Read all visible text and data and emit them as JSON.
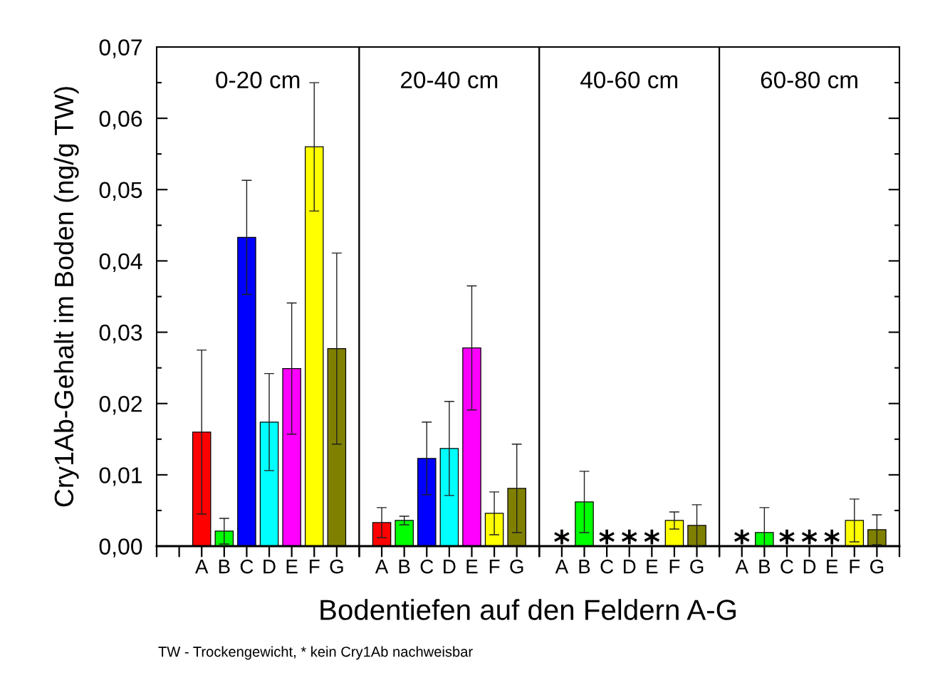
{
  "chart_data": [
    {
      "type": "bar",
      "title": "0-20 cm",
      "xlabel": "Bodentiefen auf den Feldern A-G",
      "ylabel": "Cry1Ab-Gehalt im Boden (ng/g TW)",
      "categories": [
        "A",
        "B",
        "C",
        "D",
        "E",
        "F",
        "G"
      ],
      "values": [
        0.016,
        0.0021,
        0.0433,
        0.0174,
        0.0249,
        0.056,
        0.0277
      ],
      "errors": [
        0.0115,
        0.0018,
        0.008,
        0.0068,
        0.0092,
        0.009,
        0.0134
      ],
      "colors": [
        "#ff0000",
        "#00ff00",
        "#0000ff",
        "#00ffff",
        "#ff00ff",
        "#ffff00",
        "#808000"
      ],
      "ylim": [
        0,
        0.07
      ],
      "yticks": [
        {
          "value": 0,
          "label": "0,00"
        },
        {
          "value": 0.01,
          "label": "0,01"
        },
        {
          "value": 0.02,
          "label": "0,02"
        },
        {
          "value": 0.03,
          "label": "0,03"
        },
        {
          "value": 0.04,
          "label": "0,04"
        },
        {
          "value": 0.05,
          "label": "0,05"
        },
        {
          "value": 0.06,
          "label": "0,06"
        },
        {
          "value": 0.07,
          "label": "0,07"
        }
      ],
      "annotations": [
        "TW - Trockengewicht, * kein Cry1Ab nachweisbar"
      ]
    },
    {
      "type": "bar",
      "title": "20-40 cm",
      "categories": [
        "A",
        "B",
        "C",
        "D",
        "E",
        "F",
        "G"
      ],
      "values": [
        0.0033,
        0.0036,
        0.0123,
        0.0137,
        0.0278,
        0.0046,
        0.0081
      ],
      "errors": [
        0.0021,
        0.0006,
        0.0051,
        0.0066,
        0.0087,
        0.003,
        0.0062
      ],
      "colors": [
        "#ff0000",
        "#00ff00",
        "#0000ff",
        "#00ffff",
        "#ff00ff",
        "#ffff00",
        "#808000"
      ],
      "ylim": [
        0,
        0.07
      ],
      "tick_labels": "x"
    },
    {
      "type": "bar",
      "title": "40-60 cm",
      "categories": [
        "A",
        "B",
        "C",
        "D",
        "E",
        "F",
        "G"
      ],
      "values": [
        null,
        0.0062,
        null,
        null,
        null,
        0.0036,
        0.0029
      ],
      "errors": [
        null,
        0.0043,
        null,
        null,
        null,
        0.0012,
        0.0029
      ],
      "colors": [
        null,
        "#00ff00",
        null,
        null,
        null,
        "#ffff00",
        "#808000"
      ],
      "ylim": [
        0,
        0.07
      ],
      "tick_labels": "x",
      "annotations": [
        "*",
        "*",
        "*",
        "*"
      ]
    },
    {
      "type": "bar",
      "title": "60-80 cm",
      "categories": [
        "A",
        "B",
        "C",
        "D",
        "E",
        "F",
        "G"
      ],
      "values": [
        null,
        0.0019,
        null,
        null,
        null,
        0.0036,
        0.0023
      ],
      "errors": [
        null,
        [
          0,
          0.0054
        ],
        null,
        null,
        null,
        0.003,
        0.0021
      ],
      "colors": [
        null,
        "#00ff00",
        null,
        null,
        null,
        "#ffff00",
        "#808000"
      ],
      "ylim": [
        0,
        0.07
      ],
      "yticks": [
        0,
        0.01,
        0.02,
        0.03,
        0.04,
        0.05,
        0.06,
        0.07
      ],
      "tick_labels": "x",
      "annotations": [
        "*",
        "*",
        "*",
        "*"
      ]
    }
  ]
}
